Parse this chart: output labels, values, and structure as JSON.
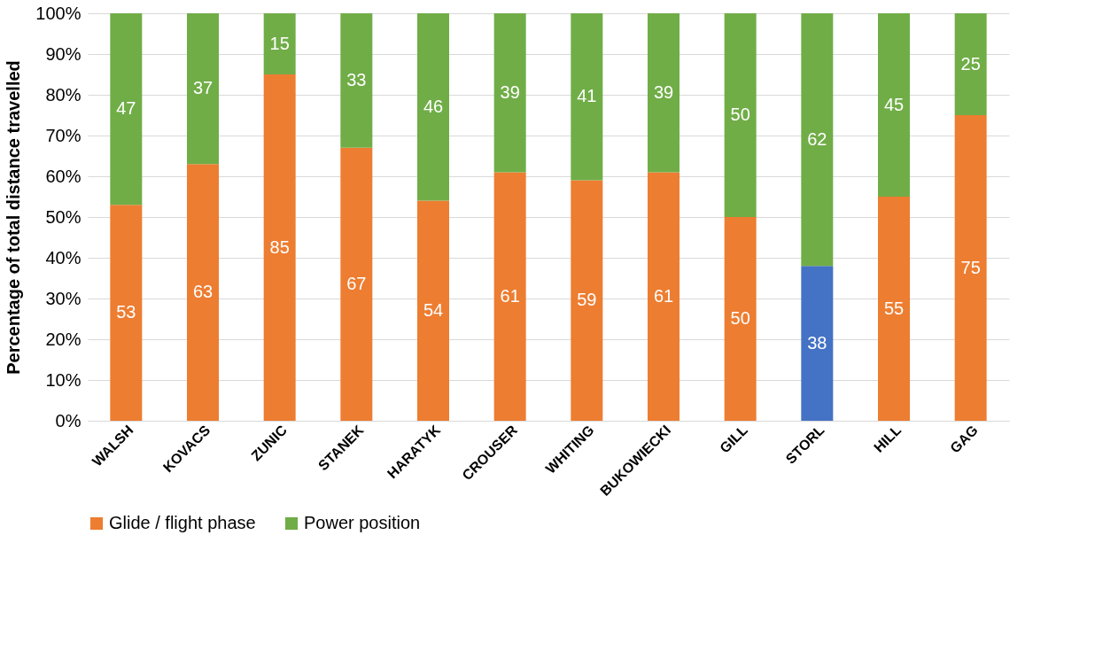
{
  "chart_data": {
    "type": "bar",
    "stacked": true,
    "ylabel": "Percentage of total distance travelled",
    "categories": [
      "WALSH",
      "KOVACS",
      "ZUNIC",
      "STANEK",
      "HARATYK",
      "CROUSER",
      "WHITING",
      "BUKOWIECKI",
      "GILL",
      "STORL",
      "HILL",
      "GAG"
    ],
    "series": [
      {
        "name": "Glide / flight phase",
        "color": "#ed7d31",
        "colors": [
          "#ed7d31",
          "#ed7d31",
          "#ed7d31",
          "#ed7d31",
          "#ed7d31",
          "#ed7d31",
          "#ed7d31",
          "#ed7d31",
          "#ed7d31",
          "#4472c4",
          "#ed7d31",
          "#ed7d31"
        ],
        "values": [
          53,
          63,
          85,
          67,
          54,
          61,
          59,
          61,
          50,
          38,
          55,
          75
        ]
      },
      {
        "name": "Power position",
        "color": "#70ad47",
        "values": [
          47,
          37,
          15,
          33,
          46,
          39,
          41,
          39,
          50,
          62,
          45,
          25
        ]
      }
    ],
    "ylim": [
      0,
      100
    ],
    "yticks": [
      {
        "value": 0,
        "label": "0%"
      },
      {
        "value": 10,
        "label": "10%"
      },
      {
        "value": 20,
        "label": "20%"
      },
      {
        "value": 30,
        "label": "30%"
      },
      {
        "value": 40,
        "label": "40%"
      },
      {
        "value": 50,
        "label": "50%"
      },
      {
        "value": 60,
        "label": "60%"
      },
      {
        "value": 70,
        "label": "70%"
      },
      {
        "value": 80,
        "label": "80%"
      },
      {
        "value": 90,
        "label": "90%"
      },
      {
        "value": 100,
        "label": "100%"
      }
    ],
    "grid": "y",
    "legend": "bottom",
    "data_labels": true
  }
}
